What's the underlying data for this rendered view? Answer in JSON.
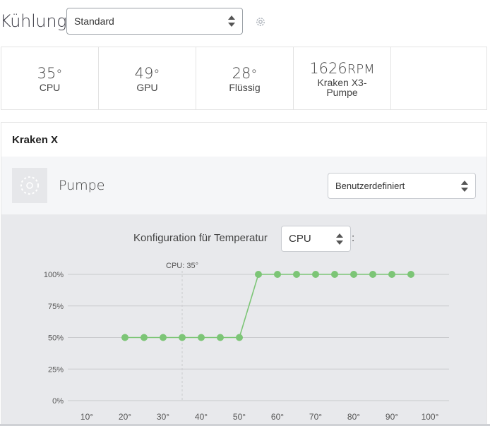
{
  "header": {
    "title": "Kühlung",
    "profile_select": "Standard"
  },
  "stats": [
    {
      "value": "35",
      "unit": "°",
      "label": "CPU"
    },
    {
      "value": "49",
      "unit": "°",
      "label": "GPU"
    },
    {
      "value": "28",
      "unit": "°",
      "label": "Flüssig"
    },
    {
      "value": "1626",
      "unit": "RPM",
      "label": "Kraken X3-\nPumpe"
    },
    {
      "value": "",
      "unit": "",
      "label": ""
    }
  ],
  "device": {
    "name": "Kraken X",
    "component": "Pumpe",
    "mode_select": "Benutzerdefiniert"
  },
  "config": {
    "label": "Konfiguration für Temperatur",
    "source_select": "CPU",
    "suffix": ":"
  },
  "colors": {
    "line": "#7cc576",
    "grid": "#c9cacd",
    "marker": "#cfd0d3"
  },
  "chart_data": {
    "type": "line",
    "marker_label": "CPU: 35°",
    "marker_x": 35,
    "x_ticks": [
      "10°",
      "20°",
      "30°",
      "40°",
      "50°",
      "60°",
      "70°",
      "80°",
      "90°",
      "100°"
    ],
    "y_ticks": [
      "0%",
      "25%",
      "50%",
      "75%",
      "100%"
    ],
    "xlim": [
      10,
      100
    ],
    "ylim": [
      0,
      100
    ],
    "series": [
      {
        "x": [
          20,
          25,
          30,
          35,
          40,
          45,
          50,
          55,
          60,
          65,
          70,
          75,
          80,
          85,
          90,
          95
        ],
        "y": [
          50,
          50,
          50,
          50,
          50,
          50,
          50,
          100,
          100,
          100,
          100,
          100,
          100,
          100,
          100,
          100
        ]
      }
    ]
  }
}
